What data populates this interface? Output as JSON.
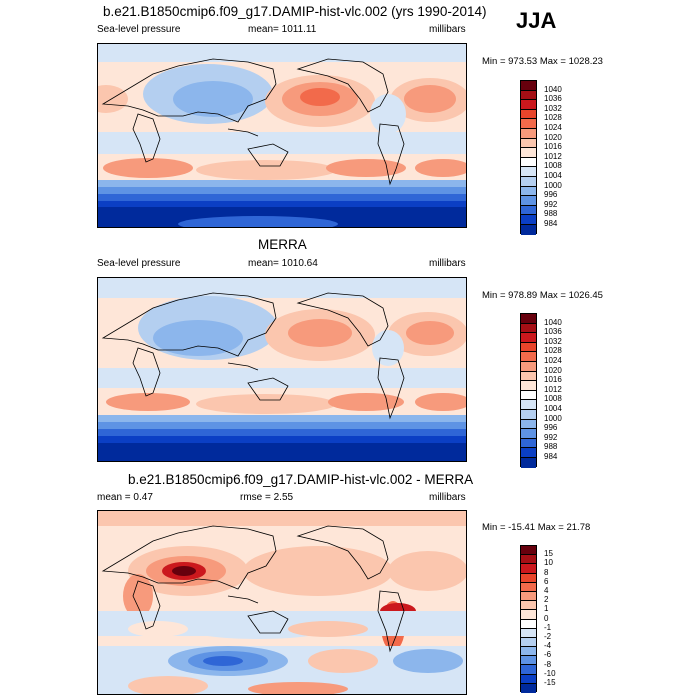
{
  "season": "JJA",
  "panel1": {
    "title": "b.e21.B1850cmip6.f09_g17.DAMIP-hist-vlc.002 (yrs 1990-2014)",
    "left": "Sea-level pressure",
    "center": "mean= 1011.11",
    "right": "millibars",
    "minmax": "Min = 973.53 Max = 1028.23"
  },
  "panel2": {
    "title": "MERRA",
    "left": "Sea-level pressure",
    "center": "mean= 1010.64",
    "right": "millibars",
    "minmax": "Min = 978.89 Max = 1026.45"
  },
  "panel3": {
    "title": "b.e21.B1850cmip6.f09_g17.DAMIP-hist-vlc.002 - MERRA",
    "left": "mean =   0.47",
    "center": "rmse =   2.55",
    "right": "millibars",
    "minmax": "Min = -15.41 Max =  21.78"
  },
  "colorbar_abs": {
    "labels": [
      "1040",
      "1036",
      "1032",
      "1028",
      "1024",
      "1020",
      "1016",
      "1012",
      "1008",
      "1004",
      "1000",
      "996",
      "992",
      "988",
      "984"
    ],
    "colors": [
      "#67000d",
      "#a50f15",
      "#cb181d",
      "#e8452b",
      "#f26a4b",
      "#f79a7c",
      "#fbc6ae",
      "#fee6d8",
      "#ffffff",
      "#d6e5f6",
      "#b4cff0",
      "#8cb6ec",
      "#5e93e4",
      "#2f66d6",
      "#0b3fc4",
      "#002a9c"
    ]
  },
  "colorbar_diff": {
    "labels": [
      "15",
      "10",
      "8",
      "6",
      "4",
      "2",
      "1",
      "0",
      "-1",
      "-2",
      "-4",
      "-6",
      "-8",
      "-10",
      "-15"
    ],
    "colors": [
      "#67000d",
      "#a50f15",
      "#cb181d",
      "#e8452b",
      "#f26a4b",
      "#f79a7c",
      "#fbc6ae",
      "#fee6d8",
      "#ffffff",
      "#d6e5f6",
      "#b4cff0",
      "#8cb6ec",
      "#5e93e4",
      "#2f66d6",
      "#0b3fc4",
      "#002a9c"
    ]
  }
}
